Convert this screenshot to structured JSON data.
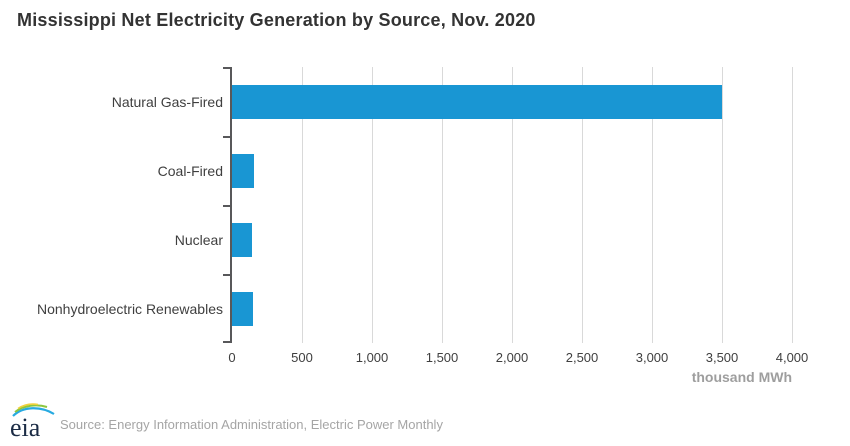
{
  "title": "Mississippi Net Electricity Generation by Source, Nov. 2020",
  "chart_data": {
    "type": "bar",
    "orientation": "horizontal",
    "title": "Mississippi Net Electricity Generation by Source, Nov. 2020",
    "categories": [
      "Natural Gas-Fired",
      "Coal-Fired",
      "Nuclear",
      "Nonhydroelectric Renewables"
    ],
    "values": [
      3500,
      160,
      140,
      150
    ],
    "xlabel": "thousand MWh",
    "ylabel": "",
    "xlim": [
      0,
      4000
    ],
    "xticks": [
      0,
      500,
      1000,
      1500,
      2000,
      2500,
      3000,
      3500,
      4000
    ],
    "xtick_labels": [
      "0",
      "500",
      "1,000",
      "1,500",
      "2,000",
      "2,500",
      "3,000",
      "3,500",
      "4,000"
    ],
    "grid": "vertical",
    "legend": "none",
    "bar_color": "#1996d3"
  },
  "colors": {
    "bar": "#1996d3",
    "gridline": "#d9d9d9",
    "axis": "#58585a",
    "title_text": "#333333",
    "label_text": "#3f3f3f",
    "axis_title_text": "#9e9e9e",
    "source_text": "#a5a5a5"
  },
  "footer": {
    "logo_text": "eia",
    "source": "Source: Energy Information Administration, Electric Power Monthly"
  }
}
